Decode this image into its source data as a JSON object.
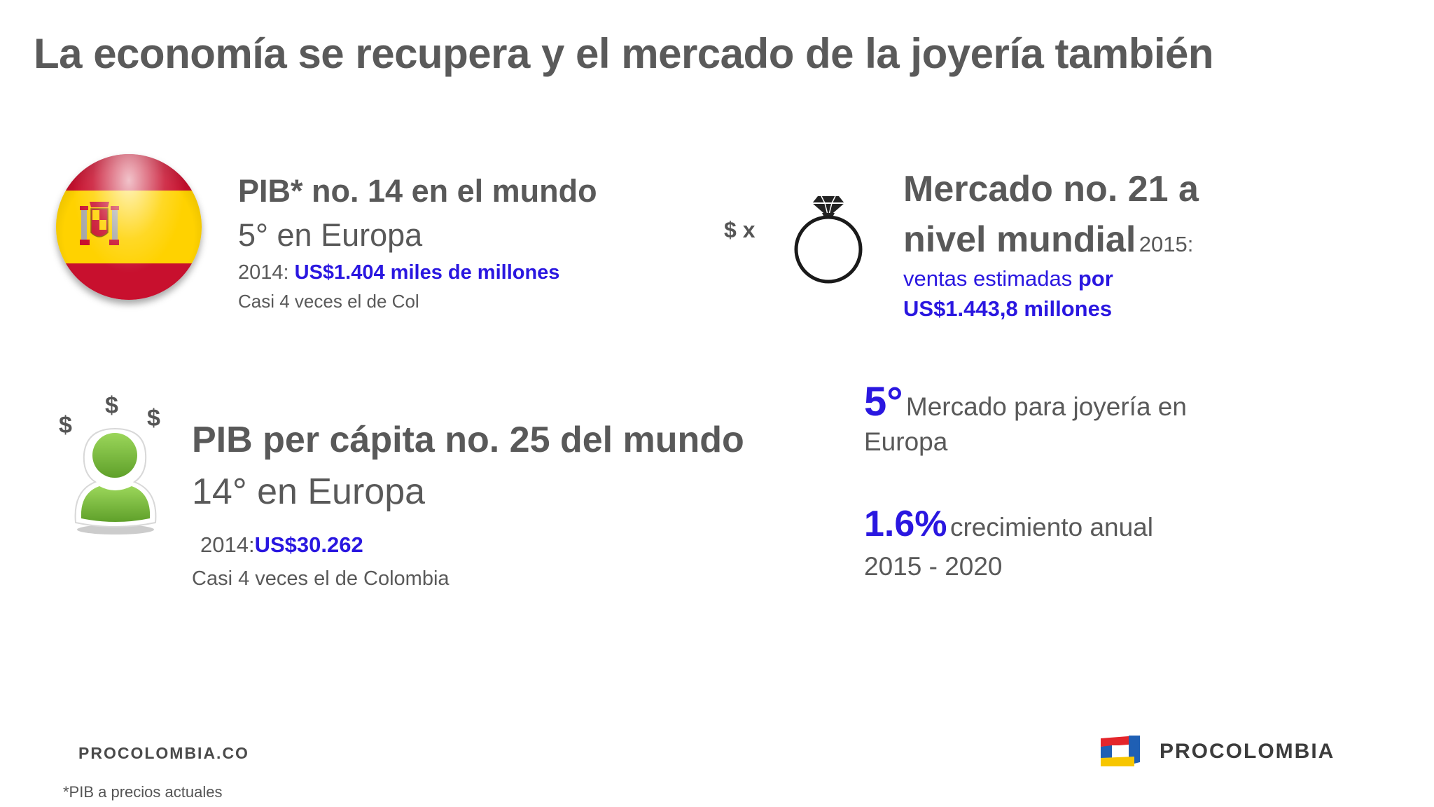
{
  "title": "La economía se recupera y el mercado de la joyería también",
  "gdp": {
    "heading": "PIB* no. 14 en el mundo",
    "europe_rank": "5° en Europa",
    "year": "2014:",
    "value": "US$1.404 miles de millones",
    "comparison": "Casi 4 veces el de Col"
  },
  "market": {
    "dollar_times": "$ x",
    "heading_line1": "Mercado no. 21 a",
    "heading_line2": "nivel mundial",
    "year": "2015:",
    "sales_line1": "ventas estimadas",
    "sales_por": "por",
    "sales_line2": "US$1.443,8 millones"
  },
  "per_capita": {
    "dollar_sign": "$",
    "heading": "PIB per cápita no. 25 del mundo",
    "europe_rank": "14° en Europa",
    "year": "2014:",
    "value": "US$30.262",
    "comparison": "Casi 4 veces el de Colombia"
  },
  "jewelry_rank": {
    "rank": "5°",
    "text_line1": "Mercado para joyería en",
    "text_line2": "Europa"
  },
  "growth": {
    "value": "1.6%",
    "text_line1": "crecimiento anual",
    "text_line2": "2015 - 2020"
  },
  "footer": {
    "url": "PROCOLOMBIA.CO",
    "footnote": "*PIB a precios actuales",
    "brand": "PROCOLOMBIA"
  },
  "colors": {
    "accent": "#2a17e0",
    "flag_red": "#c8102e",
    "flag_yellow": "#ffd200",
    "person_green": "#7cc13a",
    "logo_red": "#e4252b",
    "logo_blue": "#1f5fb4",
    "logo_yellow": "#f7c600"
  },
  "icons": [
    "spain-flag-icon",
    "diamond-ring-icon",
    "person-icon"
  ]
}
